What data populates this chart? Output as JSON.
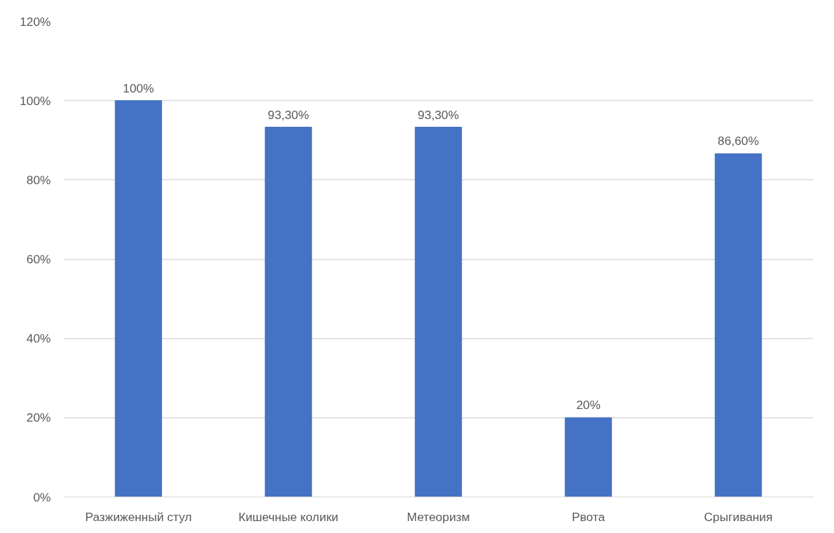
{
  "chart_data": {
    "type": "bar",
    "categories": [
      "Разжиженный стул",
      "Кишечные колики",
      "Метеоризм",
      "Рвота",
      "Срыгивания"
    ],
    "values": [
      100,
      93.3,
      93.3,
      20,
      86.6
    ],
    "value_labels": [
      "100%",
      "93,30%",
      "93,30%",
      "20%",
      "86,60%"
    ],
    "color": "#4472c4",
    "ylim": [
      0,
      120
    ],
    "yticks": [
      {
        "value": 0,
        "label": "0%"
      },
      {
        "value": 20,
        "label": "20%"
      },
      {
        "value": 40,
        "label": "40%"
      },
      {
        "value": 60,
        "label": "60%"
      },
      {
        "value": 80,
        "label": "80%"
      },
      {
        "value": 100,
        "label": "100%"
      },
      {
        "value": 120,
        "label": "120%"
      }
    ],
    "grid": "y"
  }
}
